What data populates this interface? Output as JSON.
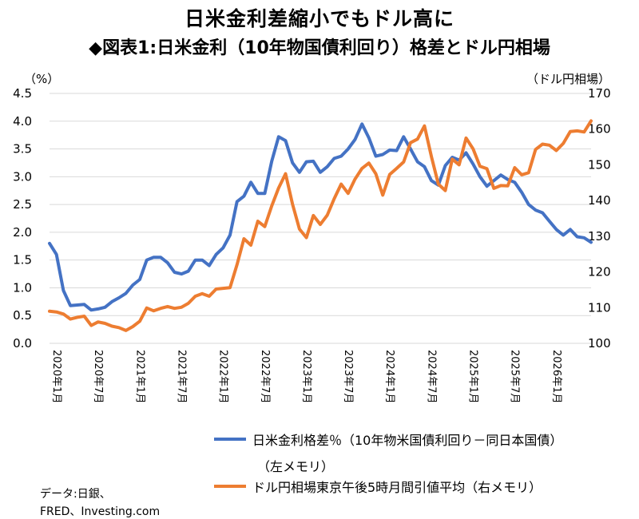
{
  "header": {
    "title": "日米金利差縮小でもドル高に",
    "subtitle": "◆図表1:日米金利（10年物国債利回り）格差とドル円相場"
  },
  "axes": {
    "left_unit": "（%）",
    "right_unit": "（ドル円相場）"
  },
  "legend": {
    "spread_label": "日米金利格差％（10年物米国債利回り－同日本国債）",
    "spread_label_cont": "（左メモリ）",
    "usdjpy_label": "ドル円相場東京午後5時月間引値平均（右メモリ）"
  },
  "source": {
    "line1": "データ:日銀、",
    "line2": "FRED、Investing.com"
  },
  "colors": {
    "spread": "#4472C4",
    "usdjpy": "#ED7D31",
    "grid": "#d9d9d9"
  },
  "chart_data": {
    "type": "line",
    "x_tick_labels": [
      "2020年1月",
      "2020年7月",
      "2021年1月",
      "2021年7月",
      "2022年1月",
      "2022年7月",
      "2023年1月",
      "2023年7月",
      "2024年1月",
      "2024年7月",
      "2025年1月",
      "2025年7月",
      "2026年1月"
    ],
    "x_tick_every": 6,
    "left_axis": {
      "ylim": [
        0,
        4.5
      ],
      "ticks": [
        "0.0",
        "0.5",
        "1.0",
        "1.5",
        "2.0",
        "2.5",
        "3.0",
        "3.5",
        "4.0",
        "4.5"
      ]
    },
    "right_axis": {
      "ylim": [
        100,
        170
      ],
      "ticks": [
        "100",
        "110",
        "120",
        "130",
        "140",
        "150",
        "160",
        "170"
      ]
    },
    "series": [
      {
        "name": "日米金利格差％（10年物米国債利回り－同日本国債）（左メモリ）",
        "axis": "left",
        "values": [
          1.8,
          1.6,
          0.95,
          0.68,
          0.69,
          0.7,
          0.6,
          0.62,
          0.65,
          0.75,
          0.82,
          0.9,
          1.05,
          1.15,
          1.5,
          1.55,
          1.55,
          1.45,
          1.28,
          1.25,
          1.3,
          1.5,
          1.5,
          1.4,
          1.6,
          1.72,
          1.95,
          2.55,
          2.65,
          2.9,
          2.7,
          2.7,
          3.28,
          3.72,
          3.65,
          3.25,
          3.08,
          3.27,
          3.28,
          3.08,
          3.18,
          3.33,
          3.37,
          3.5,
          3.67,
          3.95,
          3.7,
          3.37,
          3.4,
          3.48,
          3.47,
          3.72,
          3.5,
          3.27,
          3.18,
          2.93,
          2.85,
          3.2,
          3.35,
          3.3,
          3.43,
          3.23,
          3.0,
          2.83,
          2.93,
          3.03,
          2.95,
          2.9,
          2.72,
          2.5,
          2.4,
          2.35,
          2.2,
          2.05,
          1.95,
          2.05,
          1.92,
          1.9,
          1.82
        ]
      },
      {
        "name": "ドル円相場東京午後5時月間引値平均（右メモリ）",
        "axis": "right",
        "values": [
          109,
          108.8,
          108.2,
          106.8,
          107.3,
          107.6,
          105,
          106,
          105.6,
          104.8,
          104.4,
          103.6,
          104.7,
          106.2,
          109.9,
          109.1,
          109.8,
          110.3,
          109.8,
          110.1,
          111.2,
          113.2,
          113.9,
          113.2,
          115.2,
          115.4,
          115.6,
          122,
          129.3,
          127.5,
          134.2,
          132.7,
          138.5,
          143.5,
          147.5,
          139,
          132,
          129.6,
          135.8,
          133.3,
          135.9,
          140.5,
          144.6,
          142,
          146,
          149,
          150.5,
          147.5,
          141.5,
          147.3,
          149,
          150.8,
          156.2,
          157.2,
          160.9,
          152.3,
          144.6,
          142.8,
          151.6,
          150,
          157.5,
          154.5,
          149.6,
          148.9,
          143.4,
          144.2,
          144.1,
          149.2,
          147.2,
          147.8,
          154.3,
          155.8,
          155.5,
          154,
          156,
          159.3,
          159.5,
          159.2,
          162.3
        ]
      }
    ]
  }
}
